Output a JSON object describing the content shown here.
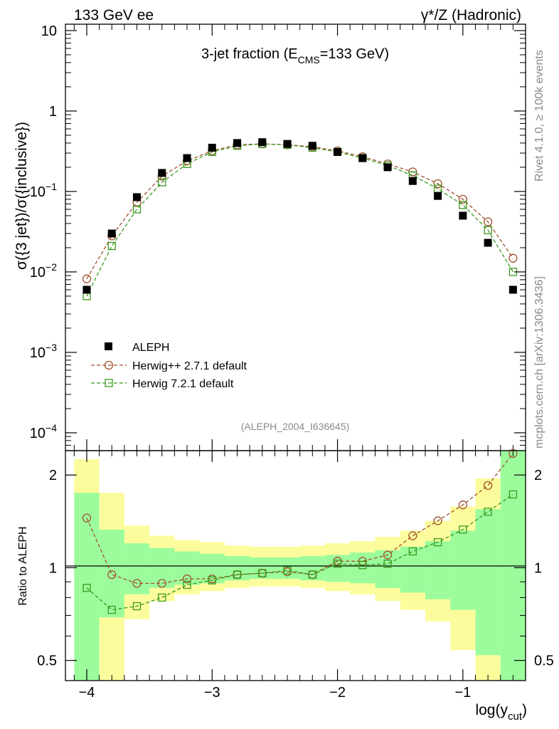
{
  "header": {
    "left_label": "133 GeV ee",
    "right_label": "γ*/Z (Hadronic)"
  },
  "side_labels": {
    "rivet": "Rivet 4.1.0, ≥ 100k events",
    "mcplots": "mcplots.cern.ch [arXiv:1306.3436]"
  },
  "chart_data": [
    {
      "type": "scatter",
      "title_main": "3-jet fraction (E",
      "title_sub": "CMS",
      "title_tail": "=133 GeV)",
      "ylabel": "σ({3 jet})/σ({inclusive})",
      "yscale": "log",
      "ylim": [
        6e-05,
        12
      ],
      "xlim": [
        -4.17,
        -0.5
      ],
      "y_ticks": [
        {
          "value": 10,
          "base": "10",
          "exp": ""
        },
        {
          "value": 1,
          "base": "1",
          "exp": ""
        },
        {
          "value": 0.1,
          "base": "10",
          "exp": "−1"
        },
        {
          "value": 0.01,
          "base": "10",
          "exp": "−2"
        },
        {
          "value": 0.001,
          "base": "10",
          "exp": "−3"
        },
        {
          "value": 0.0001,
          "base": "10",
          "exp": "−4"
        }
      ],
      "watermark": "(ALEPH_2004_I636645)",
      "legend": [
        "ALEPH",
        "Herwig++ 2.7.1 default",
        "Herwig 7.2.1 default"
      ],
      "x": [
        -4.0,
        -3.8,
        -3.6,
        -3.4,
        -3.2,
        -3.0,
        -2.8,
        -2.6,
        -2.4,
        -2.2,
        -2.0,
        -1.8,
        -1.6,
        -1.4,
        -1.2,
        -1.0,
        -0.8,
        -0.6
      ],
      "series": [
        {
          "name": "ALEPH",
          "color": "#000000",
          "marker": "filled-square",
          "values": [
            0.006,
            0.03,
            0.085,
            0.17,
            0.26,
            0.35,
            0.4,
            0.41,
            0.39,
            0.37,
            0.31,
            0.26,
            0.2,
            0.135,
            0.088,
            0.05,
            0.023,
            0.006
          ]
        },
        {
          "name": "Herwig++ 2.7.1 default",
          "color": "#a0522d",
          "marker": "open-circle",
          "values": [
            0.0082,
            0.028,
            0.073,
            0.155,
            0.24,
            0.32,
            0.38,
            0.39,
            0.38,
            0.36,
            0.32,
            0.27,
            0.22,
            0.175,
            0.125,
            0.08,
            0.042,
            0.0148
          ]
        },
        {
          "name": "Herwig 7.2.1 default",
          "color": "#3a9a1e",
          "marker": "open-square",
          "values": [
            0.005,
            0.021,
            0.06,
            0.13,
            0.22,
            0.31,
            0.37,
            0.39,
            0.38,
            0.35,
            0.31,
            0.26,
            0.21,
            0.158,
            0.108,
            0.068,
            0.033,
            0.01
          ]
        }
      ]
    },
    {
      "type": "scatter",
      "ylabel": "Ratio to ALEPH",
      "xlabel_main": "log(y",
      "xlabel_sub": "cut",
      "xlabel_tail": ")",
      "yscale": "log",
      "ylim": [
        0.43,
        2.4
      ],
      "xlim": [
        -4.17,
        -0.5
      ],
      "y_ticks": [
        0.5,
        1,
        2
      ],
      "x_ticks": [
        -4,
        -3,
        -2,
        -1
      ],
      "x_tick_labels": [
        "−4",
        "−3",
        "−2",
        "−1"
      ],
      "bin_edges": [
        -4.1,
        -3.9,
        -3.7,
        -3.5,
        -3.3,
        -3.1,
        -2.9,
        -2.7,
        -2.5,
        -2.3,
        -2.1,
        -1.9,
        -1.7,
        -1.5,
        -1.3,
        -1.1,
        -0.9,
        -0.7,
        -0.5
      ],
      "band_color_inner": "#9cfc9c",
      "band_color_outer": "#fcfc9c",
      "band_inner": [
        [
          0.43,
          1.75
        ],
        [
          0.69,
          1.33
        ],
        [
          0.82,
          1.2
        ],
        [
          0.86,
          1.16
        ],
        [
          0.88,
          1.13
        ],
        [
          0.89,
          1.11
        ],
        [
          0.91,
          1.09
        ],
        [
          0.92,
          1.08
        ],
        [
          0.92,
          1.08
        ],
        [
          0.91,
          1.09
        ],
        [
          0.9,
          1.1
        ],
        [
          0.89,
          1.12
        ],
        [
          0.86,
          1.14
        ],
        [
          0.83,
          1.17
        ],
        [
          0.79,
          1.22
        ],
        [
          0.73,
          1.32
        ],
        [
          0.52,
          1.55
        ],
        [
          0.43,
          2.4
        ]
      ],
      "band_outer": [
        [
          0.43,
          2.25
        ],
        [
          0.43,
          1.75
        ],
        [
          0.68,
          1.37
        ],
        [
          0.78,
          1.27
        ],
        [
          0.82,
          1.23
        ],
        [
          0.84,
          1.21
        ],
        [
          0.86,
          1.18
        ],
        [
          0.87,
          1.17
        ],
        [
          0.87,
          1.17
        ],
        [
          0.86,
          1.18
        ],
        [
          0.84,
          1.2
        ],
        [
          0.82,
          1.22
        ],
        [
          0.78,
          1.26
        ],
        [
          0.73,
          1.32
        ],
        [
          0.67,
          1.42
        ],
        [
          0.54,
          1.58
        ],
        [
          0.43,
          1.95
        ],
        [
          0.43,
          2.4
        ]
      ],
      "x": [
        -4.0,
        -3.8,
        -3.6,
        -3.4,
        -3.2,
        -3.0,
        -2.8,
        -2.6,
        -2.4,
        -2.2,
        -2.0,
        -1.8,
        -1.6,
        -1.4,
        -1.2,
        -1.0,
        -0.8,
        -0.6
      ],
      "series": [
        {
          "name": "Herwig++ 2.7.1 default",
          "color": "#a0522d",
          "marker": "open-circle",
          "values": [
            1.45,
            0.95,
            0.89,
            0.89,
            0.92,
            0.92,
            0.95,
            0.96,
            0.97,
            0.95,
            1.05,
            1.05,
            1.1,
            1.27,
            1.42,
            1.6,
            1.85,
            2.35
          ]
        },
        {
          "name": "Herwig 7.2.1 default",
          "color": "#3a9a1e",
          "marker": "open-square",
          "values": [
            0.86,
            0.73,
            0.75,
            0.8,
            0.88,
            0.91,
            0.95,
            0.96,
            0.98,
            0.95,
            1.03,
            1.02,
            1.03,
            1.13,
            1.21,
            1.33,
            1.52,
            1.73
          ]
        }
      ]
    }
  ]
}
